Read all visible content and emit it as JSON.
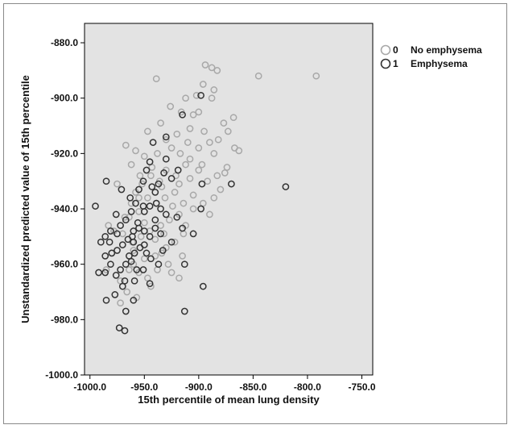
{
  "chart_data": {
    "type": "scatter",
    "title": "",
    "xlabel": "15th percentile of mean lung density",
    "ylabel": "Unstandardized predicted value of 15th percentile",
    "xlim": [
      -1005,
      -740
    ],
    "ylim": [
      -1000,
      -873
    ],
    "grid": false,
    "legend_position": "top-right (outside plot)",
    "plot_background": "#e3e3e3",
    "x_ticks": [
      {
        "value": -1000,
        "label": "-1000.0"
      },
      {
        "value": -950,
        "label": "-950.0"
      },
      {
        "value": -900,
        "label": "-900.0"
      },
      {
        "value": -850,
        "label": "-850.0"
      },
      {
        "value": -800,
        "label": "-800.0"
      },
      {
        "value": -750,
        "label": "-750.0"
      }
    ],
    "y_ticks": [
      {
        "value": -880,
        "label": "-880.0"
      },
      {
        "value": -900,
        "label": "-900.0"
      },
      {
        "value": -920,
        "label": "-920.0"
      },
      {
        "value": -940,
        "label": "-940.0"
      },
      {
        "value": -960,
        "label": "-960.0"
      },
      {
        "value": -980,
        "label": "-980.0"
      },
      {
        "value": -1000,
        "label": "-1000.0"
      }
    ],
    "series": [
      {
        "name": "No emphysema",
        "code": "0",
        "color": "#a8a8a8",
        "points": [
          [
            -894,
            -888
          ],
          [
            -888,
            -889
          ],
          [
            -883,
            -890
          ],
          [
            -792,
            -892
          ],
          [
            -845,
            -892
          ],
          [
            -939,
            -893
          ],
          [
            -896,
            -895
          ],
          [
            -886,
            -897
          ],
          [
            -902,
            -899
          ],
          [
            -888,
            -900
          ],
          [
            -868,
            -907
          ],
          [
            -916,
            -905
          ],
          [
            -905,
            -906
          ],
          [
            -877,
            -909
          ],
          [
            -926,
            -903
          ],
          [
            -908,
            -911
          ],
          [
            -895,
            -912
          ],
          [
            -930,
            -915
          ],
          [
            -947,
            -912
          ],
          [
            -967,
            -917
          ],
          [
            -958,
            -919
          ],
          [
            -950,
            -921
          ],
          [
            -945,
            -923
          ],
          [
            -938,
            -920
          ],
          [
            -925,
            -918
          ],
          [
            -917,
            -920
          ],
          [
            -908,
            -922
          ],
          [
            -900,
            -918
          ],
          [
            -890,
            -916
          ],
          [
            -882,
            -915
          ],
          [
            -873,
            -912
          ],
          [
            -863,
            -919
          ],
          [
            -867,
            -918
          ],
          [
            -874,
            -925
          ],
          [
            -883,
            -928
          ],
          [
            -892,
            -930
          ],
          [
            -900,
            -926
          ],
          [
            -912,
            -924
          ],
          [
            -921,
            -928
          ],
          [
            -930,
            -926
          ],
          [
            -936,
            -930
          ],
          [
            -944,
            -928
          ],
          [
            -952,
            -931
          ],
          [
            -958,
            -934
          ],
          [
            -962,
            -938
          ],
          [
            -955,
            -941
          ],
          [
            -947,
            -936
          ],
          [
            -939,
            -938
          ],
          [
            -931,
            -936
          ],
          [
            -922,
            -934
          ],
          [
            -914,
            -938
          ],
          [
            -905,
            -935
          ],
          [
            -896,
            -938
          ],
          [
            -886,
            -936
          ],
          [
            -880,
            -933
          ],
          [
            -890,
            -942
          ],
          [
            -905,
            -940
          ],
          [
            -918,
            -942
          ],
          [
            -927,
            -944
          ],
          [
            -935,
            -946
          ],
          [
            -945,
            -948
          ],
          [
            -953,
            -950
          ],
          [
            -961,
            -952
          ],
          [
            -970,
            -949
          ],
          [
            -978,
            -948
          ],
          [
            -983,
            -946
          ],
          [
            -960,
            -955
          ],
          [
            -950,
            -958
          ],
          [
            -940,
            -957
          ],
          [
            -930,
            -954
          ],
          [
            -922,
            -952
          ],
          [
            -915,
            -957
          ],
          [
            -928,
            -960
          ],
          [
            -938,
            -962
          ],
          [
            -947,
            -965
          ],
          [
            -955,
            -963
          ],
          [
            -964,
            -962
          ],
          [
            -972,
            -966
          ],
          [
            -966,
            -970
          ],
          [
            -957,
            -972
          ],
          [
            -944,
            -968
          ],
          [
            -972,
            -974
          ],
          [
            -960,
            -960
          ],
          [
            -950,
            -945
          ],
          [
            -940,
            -951
          ],
          [
            -932,
            -949
          ],
          [
            -912,
            -946
          ],
          [
            -924,
            -939
          ],
          [
            -934,
            -932
          ],
          [
            -943,
            -925
          ],
          [
            -954,
            -928
          ],
          [
            -962,
            -924
          ],
          [
            -975,
            -931
          ],
          [
            -968,
            -943
          ],
          [
            -980,
            -956
          ],
          [
            -985,
            -962
          ],
          [
            -964,
            -943
          ],
          [
            -955,
            -936
          ],
          [
            -918,
            -931
          ],
          [
            -908,
            -929
          ],
          [
            -897,
            -924
          ],
          [
            -886,
            -920
          ],
          [
            -876,
            -927
          ],
          [
            -920,
            -913
          ],
          [
            -935,
            -909
          ],
          [
            -910,
            -916
          ],
          [
            -900,
            -905
          ],
          [
            -912,
            -900
          ],
          [
            -918,
            -965
          ],
          [
            -925,
            -963
          ],
          [
            -934,
            -956
          ],
          [
            -914,
            -949
          ]
        ]
      },
      {
        "name": "Emphysema",
        "code": "1",
        "color": "#333333",
        "points": [
          [
            -898,
            -899
          ],
          [
            -915,
            -906
          ],
          [
            -930,
            -914
          ],
          [
            -942,
            -916
          ],
          [
            -930,
            -922
          ],
          [
            -945,
            -923
          ],
          [
            -948,
            -926
          ],
          [
            -932,
            -927
          ],
          [
            -925,
            -929
          ],
          [
            -919,
            -926
          ],
          [
            -951,
            -930
          ],
          [
            -955,
            -933
          ],
          [
            -963,
            -936
          ],
          [
            -971,
            -933
          ],
          [
            -985,
            -930
          ],
          [
            -943,
            -932
          ],
          [
            -939,
            -938
          ],
          [
            -935,
            -940
          ],
          [
            -945,
            -939
          ],
          [
            -950,
            -941
          ],
          [
            -958,
            -938
          ],
          [
            -962,
            -941
          ],
          [
            -967,
            -944
          ],
          [
            -972,
            -946
          ],
          [
            -976,
            -942
          ],
          [
            -981,
            -948
          ],
          [
            -986,
            -950
          ],
          [
            -990,
            -952
          ],
          [
            -995,
            -939
          ],
          [
            -986,
            -957
          ],
          [
            -980,
            -956
          ],
          [
            -975,
            -955
          ],
          [
            -970,
            -953
          ],
          [
            -965,
            -951
          ],
          [
            -960,
            -948
          ],
          [
            -955,
            -947
          ],
          [
            -950,
            -948
          ],
          [
            -945,
            -950
          ],
          [
            -940,
            -947
          ],
          [
            -935,
            -949
          ],
          [
            -925,
            -952
          ],
          [
            -915,
            -947
          ],
          [
            -905,
            -949
          ],
          [
            -898,
            -940
          ],
          [
            -897,
            -931
          ],
          [
            -870,
            -931
          ],
          [
            -820,
            -932
          ],
          [
            -959,
            -956
          ],
          [
            -962,
            -959
          ],
          [
            -967,
            -960
          ],
          [
            -972,
            -962
          ],
          [
            -976,
            -964
          ],
          [
            -981,
            -960
          ],
          [
            -986,
            -963
          ],
          [
            -992,
            -963
          ],
          [
            -968,
            -966
          ],
          [
            -959,
            -966
          ],
          [
            -951,
            -962
          ],
          [
            -945,
            -967
          ],
          [
            -937,
            -960
          ],
          [
            -933,
            -955
          ],
          [
            -913,
            -960
          ],
          [
            -896,
            -968
          ],
          [
            -913,
            -977
          ],
          [
            -967,
            -977
          ],
          [
            -973,
            -983
          ],
          [
            -968,
            -984
          ],
          [
            -985,
            -973
          ],
          [
            -977,
            -971
          ],
          [
            -970,
            -968
          ],
          [
            -960,
            -973
          ],
          [
            -954,
            -954
          ],
          [
            -948,
            -956
          ],
          [
            -940,
            -944
          ],
          [
            -930,
            -942
          ],
          [
            -920,
            -943
          ],
          [
            -956,
            -945
          ],
          [
            -960,
            -952
          ],
          [
            -964,
            -957
          ],
          [
            -975,
            -949
          ],
          [
            -982,
            -952
          ],
          [
            -957,
            -962
          ],
          [
            -950,
            -953
          ],
          [
            -944,
            -958
          ],
          [
            -937,
            -931
          ],
          [
            -940,
            -934
          ],
          [
            -951,
            -939
          ],
          [
            -961,
            -950
          ]
        ]
      }
    ]
  },
  "legend": {
    "items": [
      {
        "code": "0",
        "label": "No emphysema"
      },
      {
        "code": "1",
        "label": "Emphysema"
      }
    ]
  }
}
